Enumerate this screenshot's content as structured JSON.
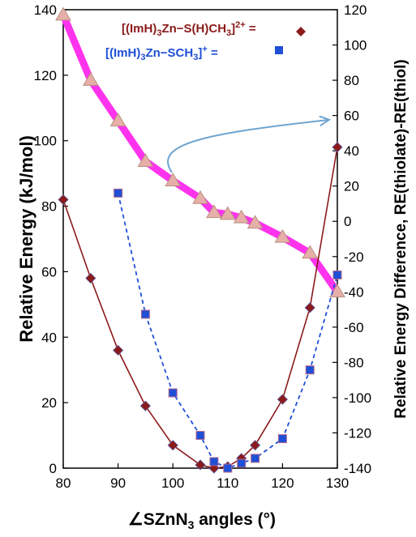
{
  "chart_data": {
    "type": "line",
    "title": "",
    "xlabel": "∠SZnN₃ angles (°)",
    "ylabel": "Relative Energy (kJ/mol)",
    "y2label": "Relative Energy Difference, RE(thiolate)-RE(thiol)",
    "xlim": [
      80,
      130
    ],
    "ylim": [
      0,
      140
    ],
    "y2lim": [
      -140,
      120
    ],
    "xticks": [
      80,
      90,
      100,
      110,
      120,
      130
    ],
    "yticks": [
      0,
      20,
      40,
      60,
      80,
      100,
      120,
      140
    ],
    "y2ticks": [
      -140,
      -120,
      -100,
      -80,
      -60,
      -40,
      -20,
      0,
      20,
      40,
      60,
      80,
      100,
      120
    ],
    "grid": false,
    "legend_position": "top-right",
    "series": [
      {
        "legend_label": "[(ImH)3Zn−S(H)CH3]2+ =",
        "axis": "left",
        "color": "#8b1a1a",
        "marker": "diamond",
        "line_style": "solid",
        "x": [
          80,
          85,
          90,
          95,
          100,
          105,
          107.5,
          110,
          112.5,
          115,
          120,
          125,
          130
        ],
        "y": [
          82,
          58,
          36,
          19,
          7,
          1,
          0,
          0.5,
          3,
          7,
          21,
          49,
          98
        ]
      },
      {
        "legend_label": "[(ImH)3Zn−SCH3]+ =",
        "axis": "left",
        "color": "#1f4fd6",
        "marker": "square",
        "line_style": "dashed",
        "x": [
          90,
          95,
          100,
          105,
          107.5,
          110,
          112.5,
          115,
          120,
          125,
          130
        ],
        "y": [
          84,
          47,
          23,
          10,
          2,
          0,
          1.5,
          3,
          9,
          30,
          59
        ]
      },
      {
        "axis": "right",
        "color": "#ff33ee",
        "marker": "triangle",
        "marker_color": "#e6b0a8",
        "line_style": "thick",
        "x": [
          80,
          85,
          90,
          95,
          100,
          105,
          107.5,
          110,
          112.5,
          115,
          120,
          125,
          130
        ],
        "y": [
          117,
          80,
          57,
          34,
          23,
          13,
          5,
          4,
          2,
          -1,
          -9,
          -18,
          -40
        ]
      }
    ],
    "annotations": [
      {
        "type": "arrow",
        "color": "#6fa5d0",
        "meaning": "points from triangle series to right axis"
      }
    ]
  }
}
